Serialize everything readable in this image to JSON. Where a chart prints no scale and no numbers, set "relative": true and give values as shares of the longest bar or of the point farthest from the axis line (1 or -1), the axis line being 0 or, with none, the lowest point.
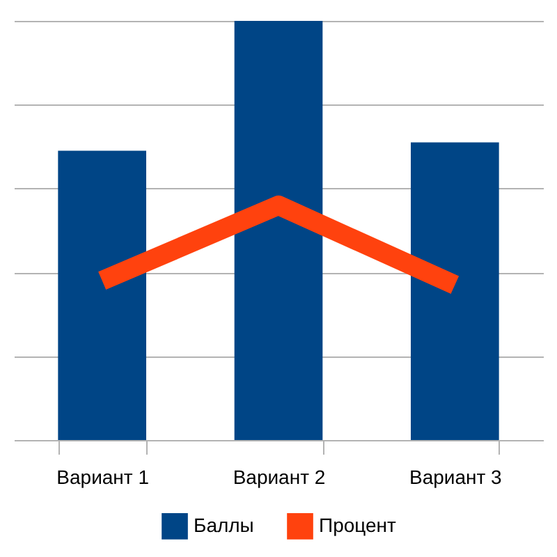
{
  "chart_data": {
    "type": "bar",
    "relative": true,
    "categories": [
      "Вариант 1",
      "Вариант 2",
      "Вариант 3"
    ],
    "series": [
      {
        "name": "Баллы",
        "color": "#004586",
        "values": [
          0.69,
          1,
          0.71
        ]
      },
      {
        "name": "Процент",
        "type": "line",
        "color": "#ff420e",
        "values": [
          0.38,
          0.56,
          0.37
        ]
      }
    ],
    "grid": "y",
    "legend": "bottom",
    "marker": "none"
  }
}
